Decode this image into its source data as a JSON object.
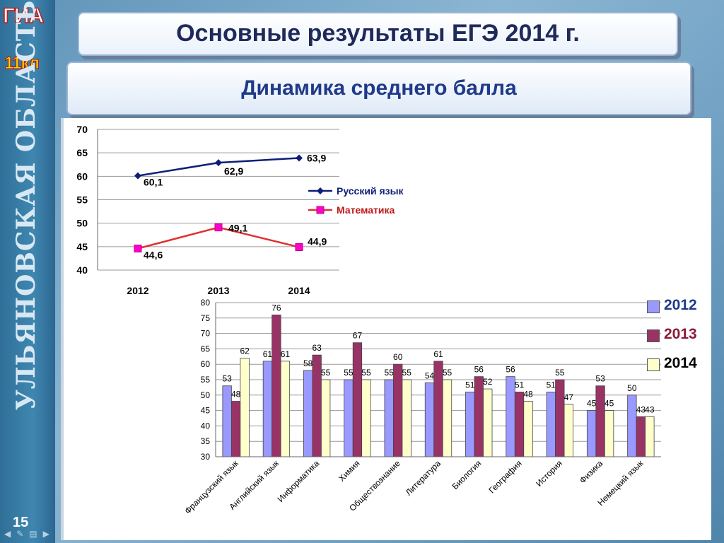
{
  "branding": {
    "logo_top": "ГИА",
    "logo_bottom": "11кл",
    "region": "УЛЬЯНОВСКАЯ ОБЛАСТЬ",
    "slide_number": "15"
  },
  "title": "Основные результаты ЕГЭ 2014 г.",
  "subtitle": "Динамика среднего балла",
  "colors": {
    "russian": "#0d1f7a",
    "math": "#e03030",
    "bar_2012": "#9999ff",
    "bar_2013": "#993366",
    "bar_2014": "#ffffcc"
  },
  "chart_data": [
    {
      "type": "line",
      "x": [
        "2012",
        "2013",
        "2014"
      ],
      "ylim": [
        40,
        70
      ],
      "yticks": [
        "40",
        "45",
        "50",
        "55",
        "60",
        "65",
        "70"
      ],
      "legend_position": "right",
      "series": [
        {
          "name": "Русский язык",
          "values": [
            60.1,
            62.9,
            63.9
          ],
          "labels": [
            "60,1",
            "62,9",
            "63,9"
          ]
        },
        {
          "name": "Математика",
          "values": [
            44.6,
            49.1,
            44.9
          ],
          "labels": [
            "44,6",
            "49,1",
            "44,9"
          ]
        }
      ]
    },
    {
      "type": "bar",
      "categories": [
        "Французский язык",
        "Английский язык",
        "Информатика",
        "Химия",
        "Обществознание",
        "Литература",
        "Биология",
        "География",
        "История",
        "Физика",
        "Немецкий язык"
      ],
      "ylim": [
        30,
        80
      ],
      "yticks": [
        "30",
        "35",
        "40",
        "45",
        "50",
        "55",
        "60",
        "65",
        "70",
        "75",
        "80"
      ],
      "legend_position": "right",
      "series": [
        {
          "name": "2012",
          "values": [
            53,
            61,
            58,
            55,
            55,
            54,
            51,
            56,
            51,
            45,
            50
          ]
        },
        {
          "name": "2013",
          "values": [
            48,
            76,
            63,
            67,
            60,
            61,
            56,
            51,
            55,
            53,
            43
          ]
        },
        {
          "name": "2014",
          "values": [
            62,
            61,
            55,
            55,
            55,
            55,
            52,
            48,
            47,
            45,
            43
          ]
        }
      ]
    }
  ]
}
